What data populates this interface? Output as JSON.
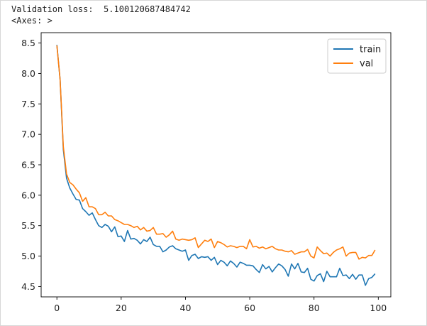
{
  "output": {
    "line1": "Validation loss:  5.100120687484742",
    "line2": "<Axes: >"
  },
  "chart_data": {
    "type": "line",
    "title": "",
    "xlabel": "",
    "ylabel": "",
    "xlim": [
      -4.9,
      103.9
    ],
    "ylim": [
      4.33,
      8.67
    ],
    "xticks": [
      0,
      20,
      40,
      60,
      80,
      100
    ],
    "xtick_labels": [
      "0",
      "20",
      "40",
      "60",
      "80",
      "100"
    ],
    "yticks": [
      4.5,
      5.0,
      5.5,
      6.0,
      6.5,
      7.0,
      7.5,
      8.0,
      8.5
    ],
    "ytick_labels": [
      "4.5",
      "5.0",
      "5.5",
      "6.0",
      "6.5",
      "7.0",
      "7.5",
      "8.0",
      "8.5"
    ],
    "grid": false,
    "legend_position": "top-right",
    "x": [
      0,
      1,
      2,
      3,
      4,
      5,
      6,
      7,
      8,
      9,
      10,
      11,
      12,
      13,
      14,
      15,
      16,
      17,
      18,
      19,
      20,
      21,
      22,
      23,
      24,
      25,
      26,
      27,
      28,
      29,
      30,
      31,
      32,
      33,
      34,
      35,
      36,
      37,
      38,
      39,
      40,
      41,
      42,
      43,
      44,
      45,
      46,
      47,
      48,
      49,
      50,
      51,
      52,
      53,
      54,
      55,
      56,
      57,
      58,
      59,
      60,
      61,
      62,
      63,
      64,
      65,
      66,
      67,
      68,
      69,
      70,
      71,
      72,
      73,
      74,
      75,
      76,
      77,
      78,
      79,
      80,
      81,
      82,
      83,
      84,
      85,
      86,
      87,
      88,
      89,
      90,
      91,
      92,
      93,
      94,
      95,
      96,
      97,
      98,
      99
    ],
    "series": [
      {
        "name": "train",
        "color": "#1f77b4",
        "values": [
          8.47,
          7.9,
          6.75,
          6.28,
          6.12,
          6.02,
          5.93,
          5.92,
          5.78,
          5.73,
          5.67,
          5.71,
          5.6,
          5.5,
          5.47,
          5.52,
          5.49,
          5.4,
          5.48,
          5.32,
          5.33,
          5.24,
          5.42,
          5.28,
          5.29,
          5.26,
          5.2,
          5.27,
          5.24,
          5.31,
          5.19,
          5.16,
          5.16,
          5.07,
          5.1,
          5.15,
          5.17,
          5.12,
          5.1,
          5.08,
          5.1,
          4.93,
          5.01,
          5.03,
          4.96,
          4.99,
          4.98,
          4.99,
          4.93,
          4.98,
          4.86,
          4.93,
          4.9,
          4.84,
          4.92,
          4.88,
          4.82,
          4.9,
          4.88,
          4.85,
          4.85,
          4.84,
          4.78,
          4.73,
          4.86,
          4.79,
          4.83,
          4.74,
          4.81,
          4.87,
          4.84,
          4.78,
          4.67,
          4.87,
          4.79,
          4.88,
          4.74,
          4.73,
          4.8,
          4.62,
          4.59,
          4.68,
          4.71,
          4.58,
          4.75,
          4.66,
          4.66,
          4.66,
          4.8,
          4.68,
          4.69,
          4.63,
          4.7,
          4.62,
          4.69,
          4.69,
          4.52,
          4.63,
          4.65,
          4.71
        ]
      },
      {
        "name": "val",
        "color": "#ff7f0e",
        "values": [
          8.46,
          7.9,
          6.8,
          6.35,
          6.21,
          6.17,
          6.1,
          6.04,
          5.9,
          5.96,
          5.81,
          5.81,
          5.78,
          5.68,
          5.68,
          5.72,
          5.66,
          5.66,
          5.6,
          5.58,
          5.55,
          5.52,
          5.52,
          5.5,
          5.47,
          5.49,
          5.43,
          5.47,
          5.41,
          5.42,
          5.47,
          5.36,
          5.36,
          5.37,
          5.31,
          5.35,
          5.41,
          5.28,
          5.26,
          5.28,
          5.27,
          5.26,
          5.27,
          5.3,
          5.14,
          5.2,
          5.26,
          5.24,
          5.28,
          5.14,
          5.24,
          5.22,
          5.19,
          5.15,
          5.17,
          5.16,
          5.14,
          5.16,
          5.16,
          5.12,
          5.27,
          5.15,
          5.16,
          5.13,
          5.15,
          5.12,
          5.14,
          5.16,
          5.12,
          5.1,
          5.1,
          5.08,
          5.07,
          5.09,
          5.03,
          5.05,
          5.07,
          5.07,
          5.11,
          5.0,
          4.97,
          5.15,
          5.09,
          5.04,
          5.05,
          5.0,
          5.06,
          5.1,
          5.12,
          5.15,
          5.0,
          5.05,
          5.06,
          5.06,
          4.95,
          4.98,
          4.97,
          5.01,
          5.01,
          5.1
        ]
      }
    ]
  }
}
